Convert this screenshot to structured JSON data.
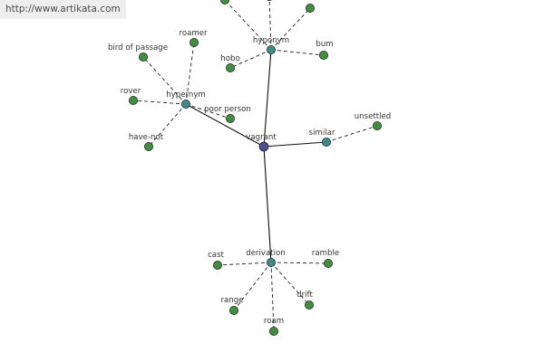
{
  "banner": {
    "url_text": "http://www.artikata.com"
  },
  "colors": {
    "background": "#ffffff",
    "banner_background": "#eeeeee",
    "root_node": "#4a4f8f",
    "category_node": "#3f8a8a",
    "leaf_node": "#3f8f3f",
    "edge": "#111111"
  },
  "graph": {
    "root": {
      "id": "vagrant",
      "label": "vagrant",
      "kind": "root"
    },
    "categories": [
      {
        "id": "hyponym",
        "label": "hyponym",
        "kind": "category"
      },
      {
        "id": "hypernym",
        "label": "hypernym",
        "kind": "category"
      },
      {
        "id": "similar",
        "label": "similar",
        "kind": "category"
      },
      {
        "id": "derivation",
        "label": "derivation",
        "kind": "category"
      }
    ],
    "leaves": [
      {
        "id": "hyponym-partial-1",
        "label": "",
        "parent": "hyponym"
      },
      {
        "id": "hyponym-partial-2",
        "label": "",
        "parent": "hyponym"
      },
      {
        "id": "hyponym-partial-3",
        "label": "",
        "parent": "hyponym"
      },
      {
        "id": "hobo",
        "label": "hobo",
        "parent": "hyponym"
      },
      {
        "id": "bum",
        "label": "bum",
        "parent": "hyponym"
      },
      {
        "id": "roamer",
        "label": "roamer",
        "parent": "hypernym"
      },
      {
        "id": "bird-of-passage",
        "label": "bird of passage",
        "parent": "hypernym"
      },
      {
        "id": "rover",
        "label": "rover",
        "parent": "hypernym"
      },
      {
        "id": "poor-person",
        "label": "poor person",
        "parent": "hypernym"
      },
      {
        "id": "have-not",
        "label": "have-not",
        "parent": "hypernym"
      },
      {
        "id": "unsettled",
        "label": "unsettled",
        "parent": "similar"
      },
      {
        "id": "cast",
        "label": "cast",
        "parent": "derivation"
      },
      {
        "id": "ramble",
        "label": "ramble",
        "parent": "derivation"
      },
      {
        "id": "range",
        "label": "range",
        "parent": "derivation"
      },
      {
        "id": "drift",
        "label": "drift",
        "parent": "derivation"
      },
      {
        "id": "roam",
        "label": "roam",
        "parent": "derivation"
      }
    ]
  }
}
